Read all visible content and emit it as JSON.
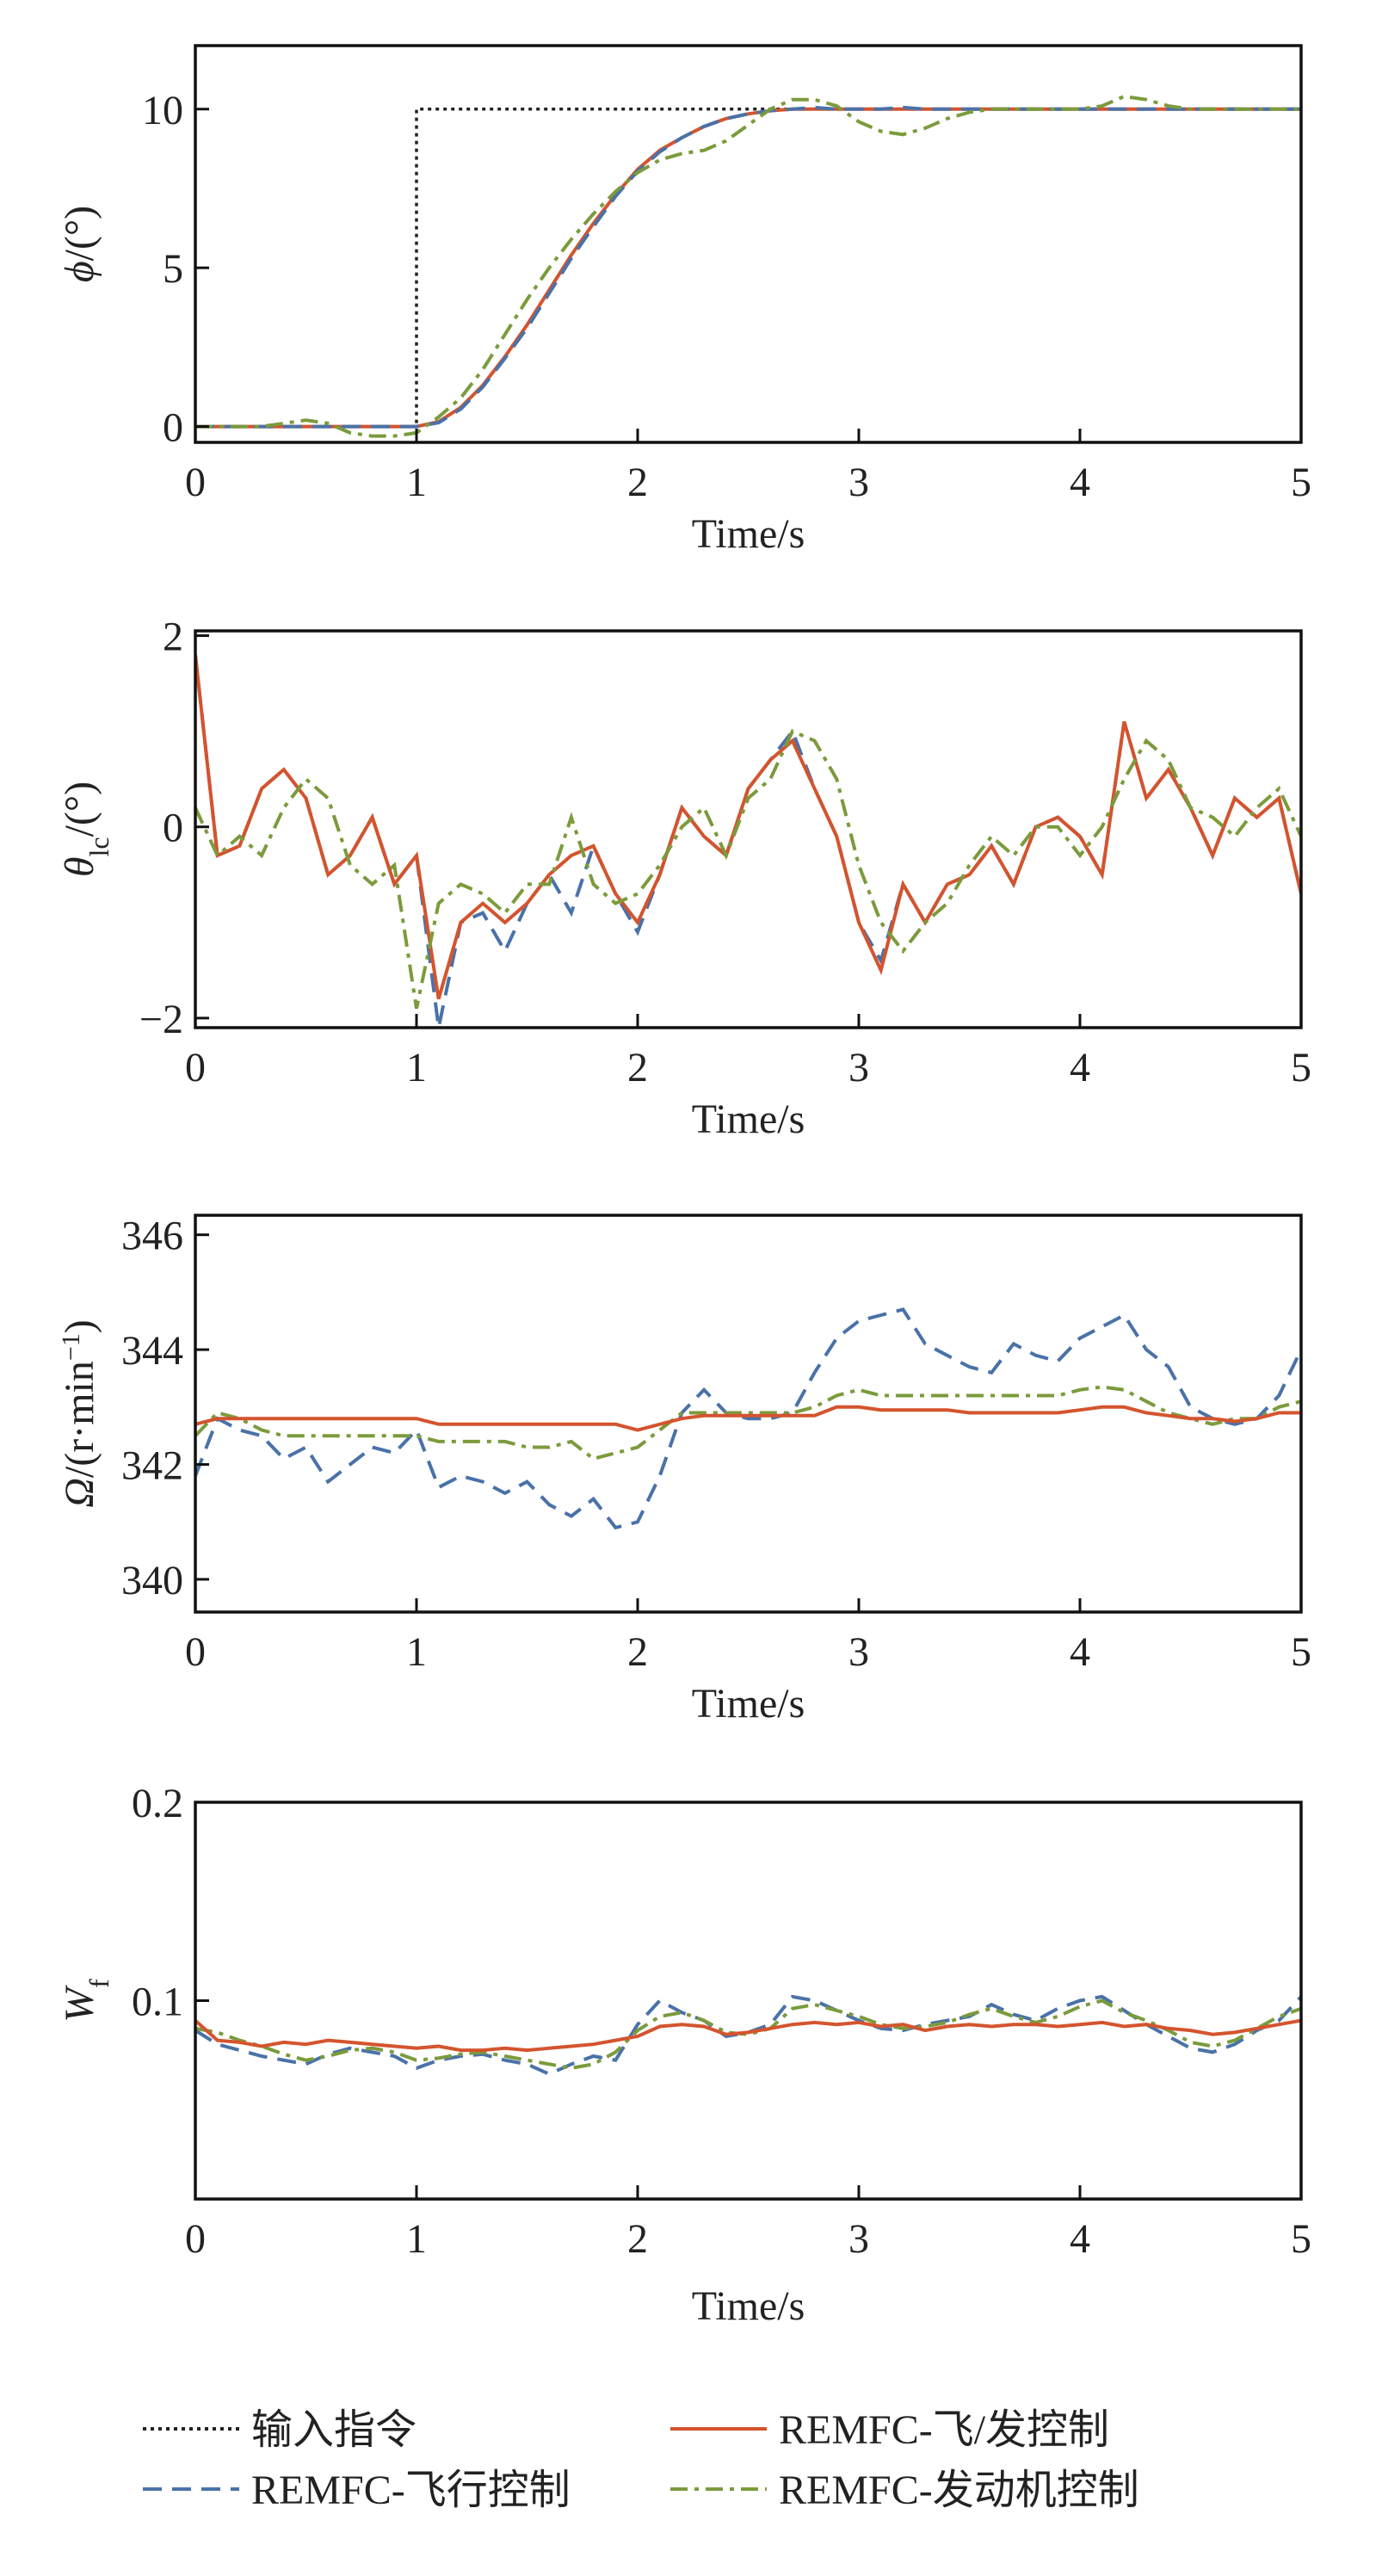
{
  "chart_data": [
    {
      "type": "line",
      "xlabel": "Time/s",
      "ylabel": [
        {
          "text": "ϕ",
          "style": "italic"
        },
        {
          "text": "/(°)",
          "style": "normal"
        }
      ],
      "xlim": [
        0,
        5
      ],
      "xticks": [
        0,
        1,
        2,
        3,
        4,
        5
      ],
      "ylim": [
        -0.5,
        12
      ],
      "yticks": [
        0,
        5,
        10
      ],
      "x": [
        0,
        0.1,
        0.2,
        0.3,
        0.4,
        0.5,
        0.6,
        0.7,
        0.8,
        0.9,
        1,
        1.1,
        1.2,
        1.3,
        1.4,
        1.5,
        1.6,
        1.7,
        1.8,
        1.9,
        2,
        2.1,
        2.2,
        2.3,
        2.4,
        2.5,
        2.6,
        2.7,
        2.8,
        2.9,
        3,
        3.1,
        3.2,
        3.3,
        3.4,
        3.5,
        3.6,
        3.7,
        3.8,
        3.9,
        4,
        4.1,
        4.2,
        4.3,
        4.4,
        4.5,
        4.6,
        4.7,
        4.8,
        4.9,
        5
      ],
      "series": [
        {
          "name": "输入指令",
          "color": "#222222",
          "dash": "dotted",
          "x": [
            0,
            1,
            1,
            5
          ],
          "values": [
            0,
            0,
            10,
            10
          ]
        },
        {
          "name": "REMFC-飞/发控制",
          "color": "#d4542e",
          "dash": "solid",
          "values": [
            0,
            0,
            0,
            0,
            0,
            0,
            0,
            0,
            0,
            0,
            0,
            0.15,
            0.6,
            1.3,
            2.2,
            3.2,
            4.3,
            5.4,
            6.4,
            7.3,
            8.1,
            8.7,
            9.1,
            9.45,
            9.7,
            9.85,
            9.95,
            10,
            10,
            10,
            10,
            10,
            10,
            10,
            10,
            10,
            10,
            10,
            10,
            10,
            10,
            10,
            10,
            10,
            10,
            10,
            10,
            10,
            10,
            10,
            10
          ]
        },
        {
          "name": "REMFC-飞行控制",
          "color": "#4a72a8",
          "dash": "dashed",
          "values": [
            0,
            0,
            0,
            0,
            0,
            0,
            0,
            0,
            0,
            0,
            0,
            0.12,
            0.55,
            1.25,
            2.15,
            3.1,
            4.2,
            5.3,
            6.3,
            7.25,
            8.05,
            8.65,
            9.1,
            9.45,
            9.7,
            9.85,
            9.95,
            10,
            10.05,
            10,
            10,
            10,
            10.05,
            10,
            10,
            10,
            10,
            10,
            10,
            10,
            10,
            10,
            10,
            10,
            10,
            10,
            10,
            10,
            10,
            10,
            10
          ]
        },
        {
          "name": "REMFC-发动机控制",
          "color": "#7b9b3c",
          "dash": "dashdot",
          "values": [
            0,
            0,
            0,
            0,
            0.1,
            0.2,
            0.1,
            -0.2,
            -0.3,
            -0.3,
            -0.2,
            0.3,
            0.9,
            1.8,
            2.9,
            4.0,
            5.0,
            5.9,
            6.7,
            7.4,
            8.0,
            8.4,
            8.6,
            8.7,
            9.0,
            9.5,
            10.0,
            10.3,
            10.3,
            10.1,
            9.6,
            9.3,
            9.2,
            9.4,
            9.7,
            9.9,
            10,
            10,
            10,
            10,
            10,
            10.1,
            10.4,
            10.3,
            10.1,
            10,
            10,
            10,
            10,
            10,
            10
          ]
        }
      ]
    },
    {
      "type": "line",
      "xlabel": "Time/s",
      "ylabel": [
        {
          "text": "θ",
          "style": "italic"
        },
        {
          "text": "lc",
          "style": "sub"
        },
        {
          "text": "/(°)",
          "style": "normal"
        }
      ],
      "xlim": [
        0,
        5
      ],
      "xticks": [
        0,
        1,
        2,
        3,
        4,
        5
      ],
      "ylim": [
        -2.1,
        2.05
      ],
      "yticks": [
        {
          "value": -2,
          "label": "−2"
        },
        0,
        2
      ],
      "x": [
        0,
        0.1,
        0.2,
        0.3,
        0.4,
        0.5,
        0.6,
        0.7,
        0.8,
        0.9,
        1,
        1.1,
        1.2,
        1.3,
        1.4,
        1.5,
        1.6,
        1.7,
        1.8,
        1.9,
        2,
        2.1,
        2.2,
        2.3,
        2.4,
        2.5,
        2.6,
        2.7,
        2.8,
        2.9,
        3,
        3.1,
        3.2,
        3.3,
        3.4,
        3.5,
        3.6,
        3.7,
        3.8,
        3.9,
        4,
        4.1,
        4.2,
        4.3,
        4.4,
        4.5,
        4.6,
        4.7,
        4.8,
        4.9,
        5
      ],
      "series": [
        {
          "color": "#4a72a8",
          "dash": "dashed",
          "values": [
            1.8,
            -0.3,
            -0.2,
            0.4,
            0.6,
            0.3,
            -0.5,
            -0.3,
            0.1,
            -0.6,
            -0.3,
            -2.1,
            -1.0,
            -0.9,
            -1.3,
            -0.8,
            -0.5,
            -0.9,
            -0.2,
            -0.7,
            -1.1,
            -0.5,
            0.2,
            -0.1,
            -0.3,
            0.4,
            0.7,
            1.0,
            0.4,
            -0.1,
            -1.0,
            -1.4,
            -0.6,
            -1.0,
            -0.6,
            -0.5,
            -0.2,
            -0.6,
            0.0,
            0.1,
            -0.1,
            -0.5,
            1.1,
            0.3,
            0.6,
            0.2,
            -0.3,
            0.3,
            0.1,
            0.3,
            -0.7
          ]
        },
        {
          "color": "#d4542e",
          "dash": "solid",
          "values": [
            1.8,
            -0.3,
            -0.2,
            0.4,
            0.6,
            0.3,
            -0.5,
            -0.3,
            0.1,
            -0.6,
            -0.3,
            -1.8,
            -1.0,
            -0.8,
            -1.0,
            -0.8,
            -0.5,
            -0.3,
            -0.2,
            -0.7,
            -1.0,
            -0.5,
            0.2,
            -0.1,
            -0.3,
            0.4,
            0.7,
            0.9,
            0.4,
            -0.1,
            -1.0,
            -1.5,
            -0.6,
            -1.0,
            -0.6,
            -0.5,
            -0.2,
            -0.6,
            0.0,
            0.1,
            -0.1,
            -0.5,
            1.1,
            0.3,
            0.6,
            0.2,
            -0.3,
            0.3,
            0.1,
            0.3,
            -0.7
          ]
        },
        {
          "color": "#7b9b3c",
          "dash": "dashdot",
          "values": [
            0.2,
            -0.3,
            -0.1,
            -0.3,
            0.2,
            0.5,
            0.3,
            -0.4,
            -0.6,
            -0.4,
            -1.9,
            -0.8,
            -0.6,
            -0.7,
            -0.9,
            -0.6,
            -0.6,
            0.1,
            -0.6,
            -0.8,
            -0.7,
            -0.4,
            0.0,
            0.2,
            -0.3,
            0.3,
            0.5,
            1.0,
            0.9,
            0.5,
            -0.4,
            -1.0,
            -1.3,
            -1.0,
            -0.8,
            -0.4,
            -0.1,
            -0.3,
            0.0,
            0.0,
            -0.3,
            0.0,
            0.5,
            0.9,
            0.7,
            0.2,
            0.1,
            -0.1,
            0.2,
            0.4,
            -0.1
          ]
        }
      ]
    },
    {
      "type": "line",
      "xlabel": "Time/s",
      "ylabel": [
        {
          "text": "Ω",
          "style": "italic"
        },
        {
          "text": "/(r·min",
          "style": "normal"
        },
        {
          "text": "−1",
          "style": "sup"
        },
        {
          "text": ")",
          "style": "normal"
        }
      ],
      "xlim": [
        0,
        5
      ],
      "xticks": [
        0,
        1,
        2,
        3,
        4,
        5
      ],
      "ylim": [
        339.43,
        346.34
      ],
      "yticks": [
        340,
        342,
        344,
        346
      ],
      "x": [
        0,
        0.1,
        0.2,
        0.3,
        0.4,
        0.5,
        0.6,
        0.7,
        0.8,
        0.9,
        1,
        1.1,
        1.2,
        1.3,
        1.4,
        1.5,
        1.6,
        1.7,
        1.8,
        1.9,
        2,
        2.1,
        2.2,
        2.3,
        2.4,
        2.5,
        2.6,
        2.7,
        2.8,
        2.9,
        3,
        3.1,
        3.2,
        3.3,
        3.4,
        3.5,
        3.6,
        3.7,
        3.8,
        3.9,
        4,
        4.1,
        4.2,
        4.3,
        4.4,
        4.5,
        4.6,
        4.7,
        4.8,
        4.9,
        5
      ],
      "series": [
        {
          "color": "#4a72a8",
          "dash": "dashed",
          "values": [
            341.8,
            342.8,
            342.6,
            342.5,
            342.1,
            342.3,
            341.7,
            342.0,
            342.3,
            342.2,
            342.6,
            341.6,
            341.8,
            341.7,
            341.5,
            341.7,
            341.3,
            341.1,
            341.4,
            340.9,
            341.0,
            341.8,
            342.9,
            343.3,
            342.9,
            342.8,
            342.8,
            342.9,
            343.6,
            344.2,
            344.5,
            344.6,
            344.7,
            344.1,
            343.9,
            343.7,
            343.6,
            344.1,
            343.9,
            343.8,
            344.2,
            344.4,
            344.6,
            344.0,
            343.7,
            343.0,
            342.8,
            342.7,
            342.8,
            343.2,
            344.0
          ]
        },
        {
          "color": "#7b9b3c",
          "dash": "dashdot",
          "values": [
            342.5,
            342.9,
            342.8,
            342.6,
            342.5,
            342.5,
            342.5,
            342.5,
            342.5,
            342.5,
            342.5,
            342.4,
            342.4,
            342.4,
            342.4,
            342.3,
            342.3,
            342.4,
            342.1,
            342.2,
            342.3,
            342.6,
            342.9,
            342.9,
            342.9,
            342.9,
            342.9,
            342.9,
            343.0,
            343.2,
            343.3,
            343.2,
            343.2,
            343.2,
            343.2,
            343.2,
            343.2,
            343.2,
            343.2,
            343.2,
            343.3,
            343.35,
            343.3,
            343.1,
            342.9,
            342.8,
            342.7,
            342.8,
            342.8,
            343.0,
            343.1
          ]
        },
        {
          "color": "#d4542e",
          "dash": "solid",
          "values": [
            342.7,
            342.8,
            342.8,
            342.8,
            342.8,
            342.8,
            342.8,
            342.8,
            342.8,
            342.8,
            342.8,
            342.7,
            342.7,
            342.7,
            342.7,
            342.7,
            342.7,
            342.7,
            342.7,
            342.7,
            342.6,
            342.7,
            342.8,
            342.85,
            342.85,
            342.85,
            342.85,
            342.85,
            342.85,
            343.0,
            343.0,
            342.95,
            342.95,
            342.95,
            342.95,
            342.9,
            342.9,
            342.9,
            342.9,
            342.9,
            342.95,
            343.0,
            343.0,
            342.9,
            342.85,
            342.8,
            342.8,
            342.75,
            342.8,
            342.9,
            342.9
          ]
        }
      ]
    },
    {
      "type": "line",
      "xlabel": "Time/s",
      "ylabel": [
        {
          "text": "W",
          "style": "italic"
        },
        {
          "text": "f",
          "style": "sub"
        }
      ],
      "xlim": [
        0,
        5
      ],
      "xticks": [
        0,
        1,
        2,
        3,
        4,
        5
      ],
      "ylim": [
        0,
        0.2
      ],
      "yticks": [
        0.1,
        0.2
      ],
      "tick_side": "bottom-only",
      "x": [
        0,
        0.1,
        0.2,
        0.3,
        0.4,
        0.5,
        0.6,
        0.7,
        0.8,
        0.9,
        1,
        1.1,
        1.2,
        1.3,
        1.4,
        1.5,
        1.6,
        1.7,
        1.8,
        1.9,
        2,
        2.1,
        2.2,
        2.3,
        2.4,
        2.5,
        2.6,
        2.7,
        2.8,
        2.9,
        3,
        3.1,
        3.2,
        3.3,
        3.4,
        3.5,
        3.6,
        3.7,
        3.8,
        3.9,
        4,
        4.1,
        4.2,
        4.3,
        4.4,
        4.5,
        4.6,
        4.7,
        4.8,
        4.9,
        5
      ],
      "series": [
        {
          "color": "#4a72a8",
          "dash": "dashed",
          "values": [
            0.085,
            0.078,
            0.075,
            0.072,
            0.07,
            0.068,
            0.073,
            0.076,
            0.074,
            0.072,
            0.066,
            0.07,
            0.072,
            0.073,
            0.07,
            0.068,
            0.063,
            0.068,
            0.072,
            0.07,
            0.088,
            0.1,
            0.094,
            0.09,
            0.082,
            0.084,
            0.088,
            0.102,
            0.1,
            0.095,
            0.09,
            0.086,
            0.085,
            0.088,
            0.09,
            0.092,
            0.098,
            0.093,
            0.09,
            0.096,
            0.1,
            0.102,
            0.095,
            0.088,
            0.082,
            0.076,
            0.074,
            0.078,
            0.085,
            0.09,
            0.102
          ]
        },
        {
          "color": "#7b9b3c",
          "dash": "dashdot",
          "values": [
            0.086,
            0.084,
            0.08,
            0.077,
            0.073,
            0.07,
            0.072,
            0.075,
            0.076,
            0.074,
            0.07,
            0.071,
            0.073,
            0.074,
            0.072,
            0.07,
            0.068,
            0.066,
            0.068,
            0.074,
            0.085,
            0.092,
            0.094,
            0.09,
            0.084,
            0.083,
            0.086,
            0.096,
            0.098,
            0.095,
            0.092,
            0.088,
            0.086,
            0.087,
            0.089,
            0.093,
            0.096,
            0.092,
            0.089,
            0.092,
            0.097,
            0.1,
            0.094,
            0.09,
            0.085,
            0.079,
            0.077,
            0.08,
            0.086,
            0.092,
            0.096
          ]
        },
        {
          "color": "#d4542e",
          "dash": "solid",
          "values": [
            0.09,
            0.08,
            0.079,
            0.077,
            0.079,
            0.078,
            0.08,
            0.079,
            0.078,
            0.077,
            0.076,
            0.077,
            0.075,
            0.075,
            0.076,
            0.075,
            0.076,
            0.077,
            0.078,
            0.08,
            0.082,
            0.087,
            0.088,
            0.087,
            0.083,
            0.084,
            0.086,
            0.088,
            0.089,
            0.088,
            0.089,
            0.087,
            0.088,
            0.085,
            0.087,
            0.088,
            0.087,
            0.088,
            0.088,
            0.087,
            0.088,
            0.089,
            0.087,
            0.088,
            0.086,
            0.085,
            0.083,
            0.084,
            0.086,
            0.088,
            0.09
          ]
        }
      ]
    }
  ]
}
